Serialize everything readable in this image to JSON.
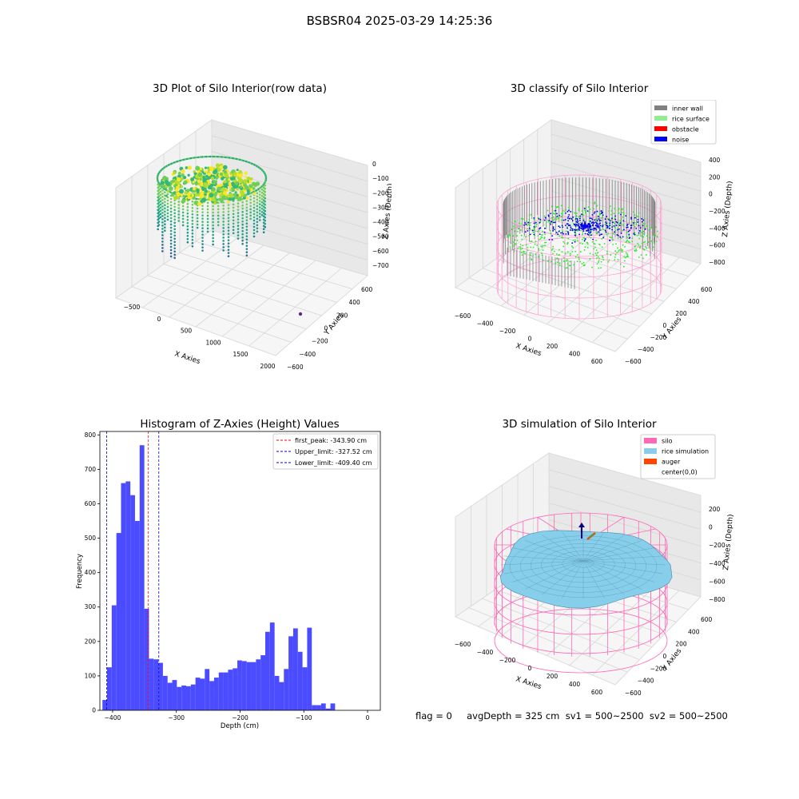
{
  "figure": {
    "title": "BSBSR04 2025-03-29 14:25:36"
  },
  "status": {
    "text": "flag = 0     avgDepth = 325 cm  sv1 = 500~2500  sv2 = 500~2500"
  },
  "chart_data": [
    {
      "type": "scatter",
      "projection": "3d",
      "title": "3D Plot of Silo Interior(row data)",
      "xlabel": "X Axies",
      "ylabel": "Y Axies",
      "zlabel": "Z Axies (Depth)",
      "x_ticks": [
        "−500",
        "0",
        "500",
        "1000",
        "1500",
        "2000"
      ],
      "y_ticks": [
        "−600",
        "−400",
        "−200",
        "0",
        "200",
        "400",
        "600"
      ],
      "z_ticks": [
        "0",
        "−100",
        "−200",
        "−300",
        "−400",
        "−500",
        "−600",
        "−700"
      ],
      "colormap": "viridis",
      "outlier_point": {
        "x": 1900,
        "y": -100,
        "z": -700
      }
    },
    {
      "type": "scatter",
      "projection": "3d",
      "title": "3D classify of Silo Interior",
      "xlabel": "X Axies",
      "ylabel": "Y Axies",
      "zlabel": "Z Axies (Depth)",
      "x_ticks": [
        "−600",
        "−400",
        "−200",
        "0",
        "200",
        "400",
        "600"
      ],
      "y_ticks": [
        "−600",
        "−400",
        "−200",
        "0",
        "200",
        "400",
        "600"
      ],
      "z_ticks": [
        "400",
        "200",
        "0",
        "−200",
        "−400",
        "−600",
        "−800"
      ],
      "legend_position": "top-right",
      "legend": [
        {
          "label": "inner wall",
          "color": "#808080"
        },
        {
          "label": "rice surface",
          "color": "#90ee90"
        },
        {
          "label": "obstacle",
          "color": "#ff0000"
        },
        {
          "label": "noise",
          "color": "#0000ff"
        }
      ]
    },
    {
      "type": "bar",
      "title": "Histogram of Z-Axies (Height) Values",
      "xlabel": "Depth (cm)",
      "ylabel": "Frequency",
      "xlim": [
        -420,
        20
      ],
      "ylim": [
        0,
        810
      ],
      "x_ticks": [
        -400,
        -300,
        -200,
        -100,
        0
      ],
      "y_ticks": [
        0,
        100,
        200,
        300,
        400,
        500,
        600,
        700,
        800
      ],
      "bar_color": "#4b4bff",
      "bin_width": 7.3,
      "bin_start": -416,
      "values": [
        30,
        125,
        305,
        515,
        660,
        665,
        625,
        550,
        770,
        295,
        150,
        148,
        138,
        100,
        80,
        88,
        68,
        72,
        70,
        75,
        95,
        92,
        120,
        85,
        95,
        110,
        110,
        118,
        122,
        145,
        143,
        140,
        140,
        148,
        160,
        228,
        255,
        100,
        82,
        120,
        215,
        238,
        170,
        125,
        240,
        15,
        15,
        20,
        5,
        20
      ],
      "lines": [
        {
          "label": "first_peak: -343.90 cm",
          "x": -343.9,
          "color": "#ff0000"
        },
        {
          "label": "Upper_limit: -327.52 cm",
          "x": -327.52,
          "color": "#0000cc"
        },
        {
          "label": "Lower_limit: -409.40 cm",
          "x": -409.4,
          "color": "#0000cc"
        }
      ],
      "legend_position": "top-right"
    },
    {
      "type": "surface",
      "projection": "3d",
      "title": "3D simulation of Silo Interior",
      "xlabel": "X Axies",
      "ylabel": "Y Axies",
      "zlabel": "Z Axies (Depth)",
      "x_ticks": [
        "−600",
        "−400",
        "−200",
        "0",
        "200",
        "400",
        "600"
      ],
      "y_ticks": [
        "−600",
        "−400",
        "−200",
        "0",
        "200",
        "400",
        "600"
      ],
      "z_ticks": [
        "200",
        "0",
        "−200",
        "−400",
        "−600",
        "−800"
      ],
      "legend_position": "top-right",
      "legend": [
        {
          "label": "silo",
          "color": "#ff69b4"
        },
        {
          "label": "rice simulation",
          "color": "#87ceeb"
        },
        {
          "label": "auger",
          "color": "#ff4500"
        },
        {
          "label": "center(0,0)",
          "color": ""
        }
      ]
    }
  ]
}
